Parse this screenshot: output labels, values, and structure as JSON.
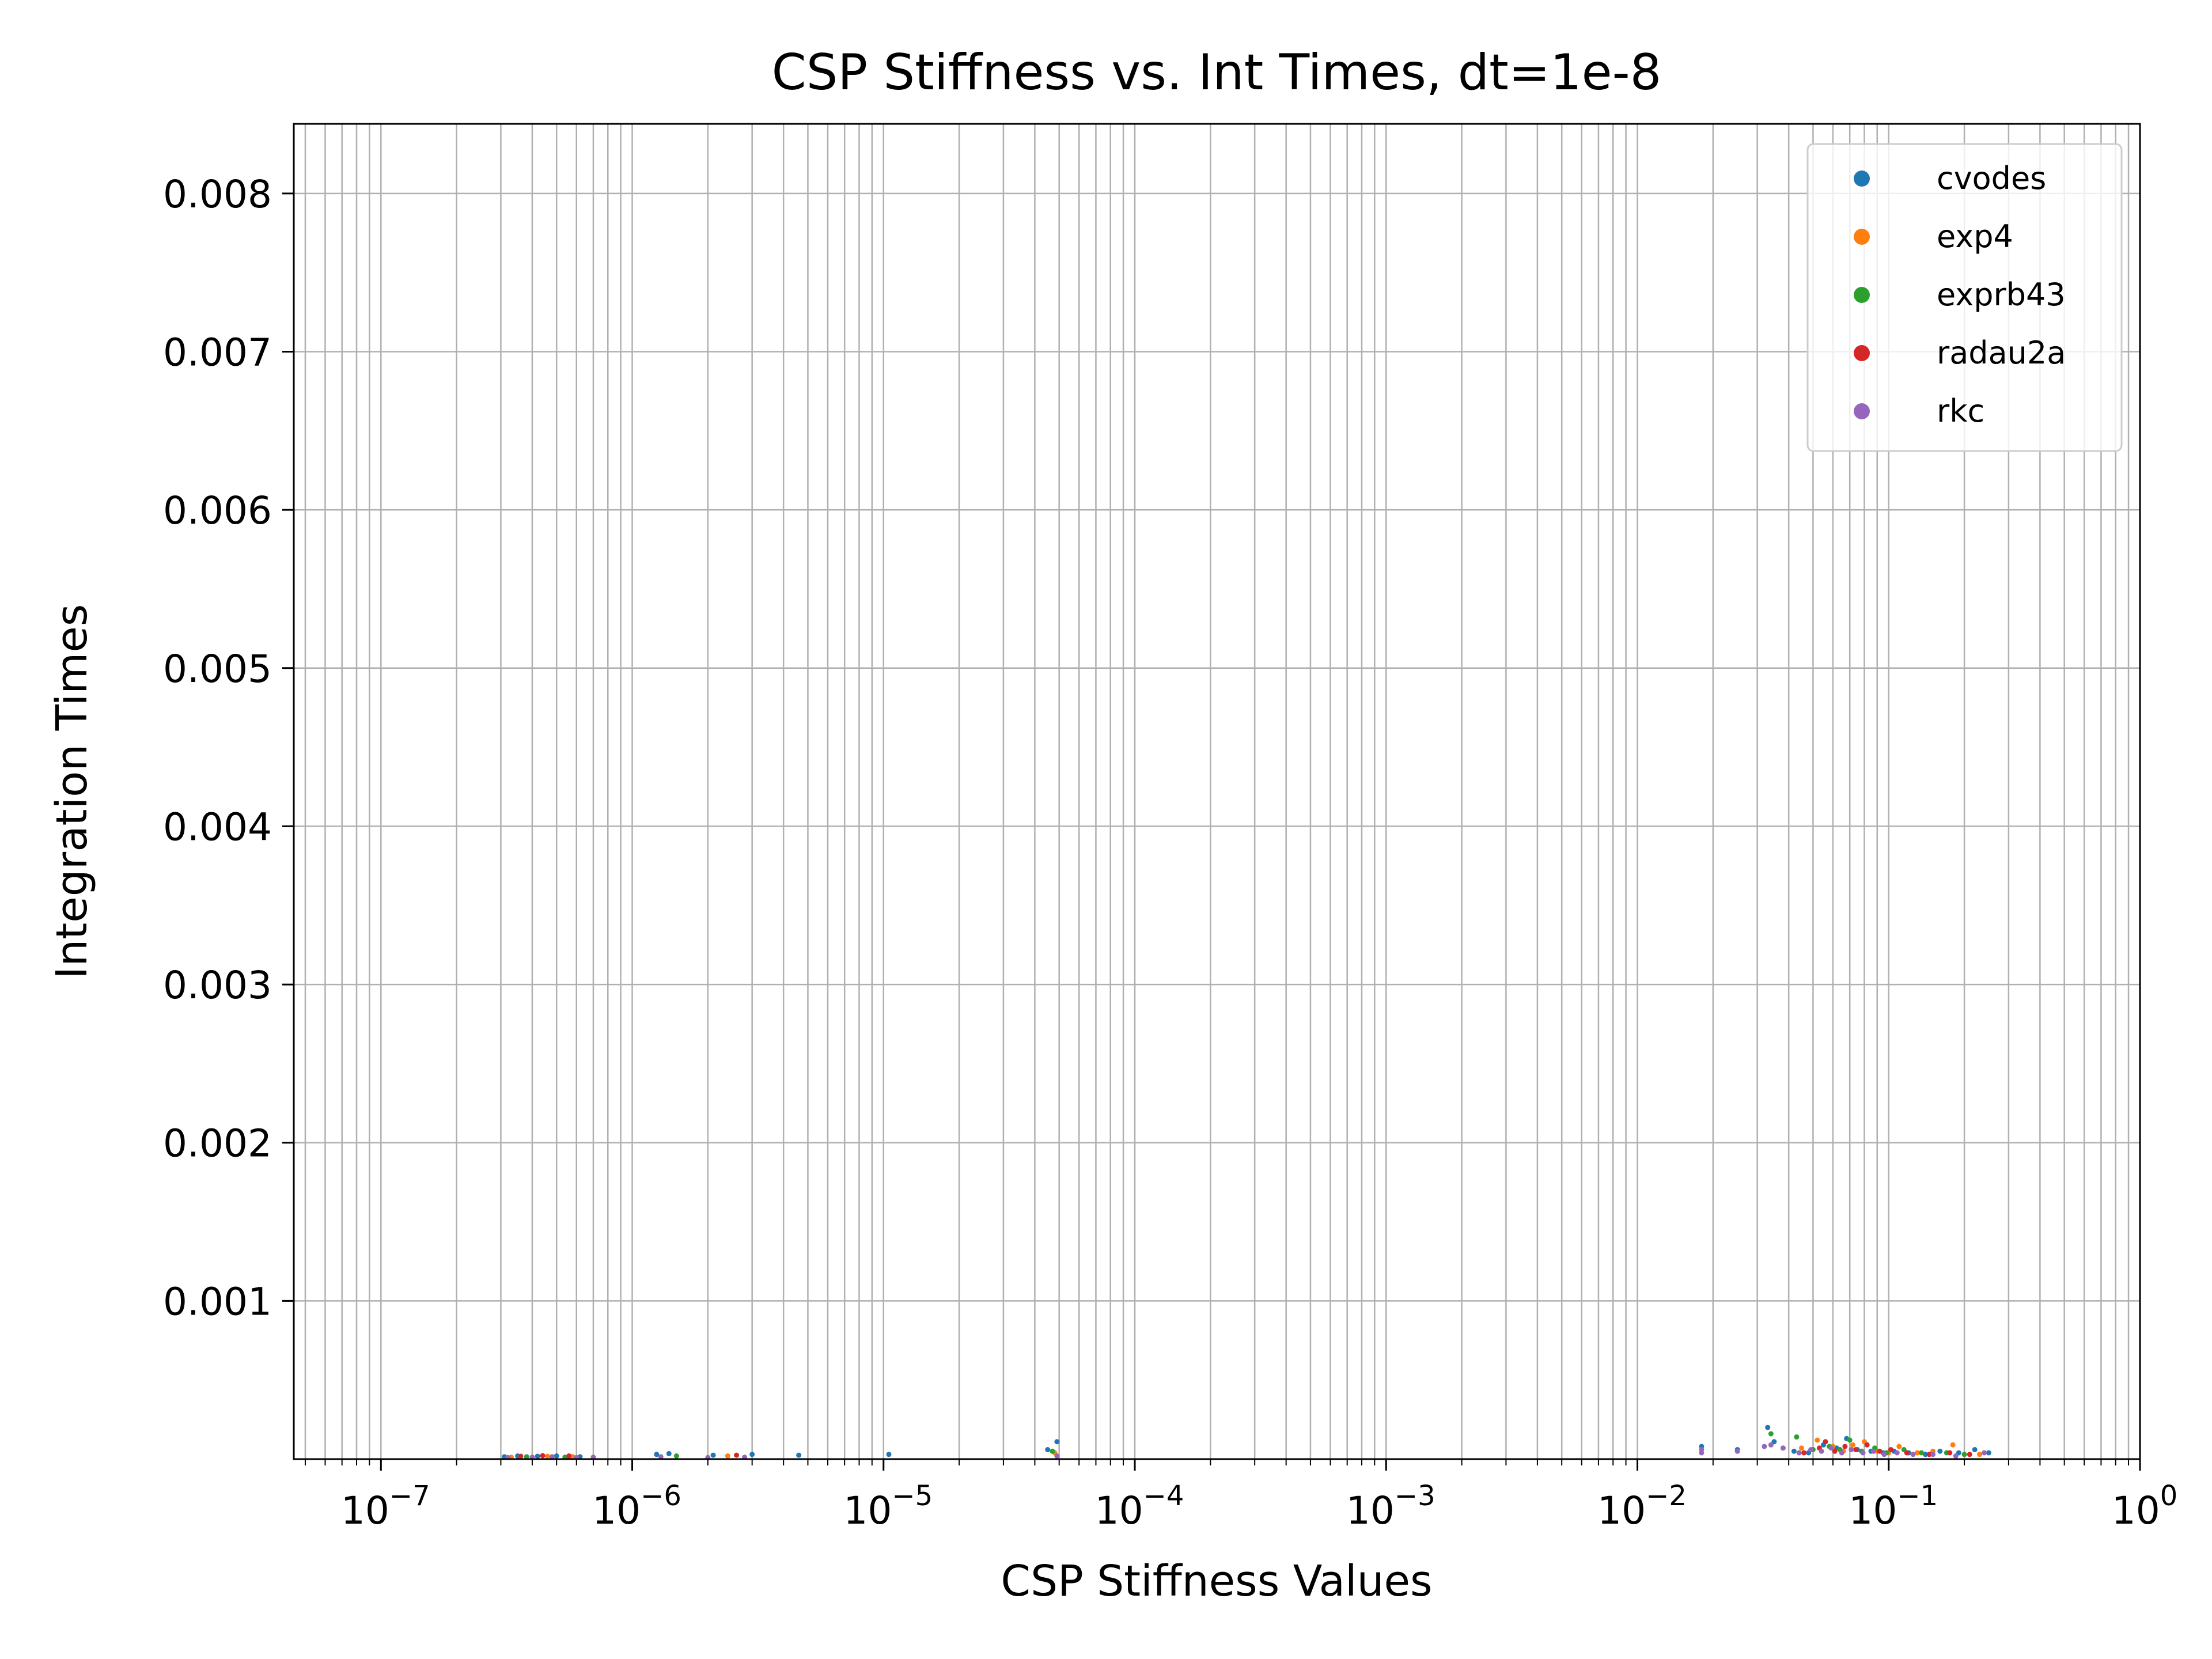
{
  "chart_data": {
    "type": "scatter",
    "title": "CSP Stiffness vs. Int Times, dt=1e-8",
    "xlabel": "CSP Stiffness Values",
    "ylabel": "Integration Times",
    "xscale": "log",
    "xlim": [
      4.5e-08,
      1.0
    ],
    "ylim": [
      0.0,
      0.00844
    ],
    "grid": "on (major and minor)",
    "legend_placement": "top-right",
    "x_ticks": [
      {
        "value": 1e-07,
        "mantissa": "10",
        "exp": "−7"
      },
      {
        "value": 1e-06,
        "mantissa": "10",
        "exp": "−6"
      },
      {
        "value": 1e-05,
        "mantissa": "10",
        "exp": "−5"
      },
      {
        "value": 0.0001,
        "mantissa": "10",
        "exp": "−4"
      },
      {
        "value": 0.001,
        "mantissa": "10",
        "exp": "−3"
      },
      {
        "value": 0.01,
        "mantissa": "10",
        "exp": "−2"
      },
      {
        "value": 0.1,
        "mantissa": "10",
        "exp": "−1"
      },
      {
        "value": 1.0,
        "mantissa": "10",
        "exp": "0"
      }
    ],
    "y_ticks": [
      {
        "value": 0.001,
        "label": "0.001"
      },
      {
        "value": 0.002,
        "label": "0.002"
      },
      {
        "value": 0.003,
        "label": "0.003"
      },
      {
        "value": 0.004,
        "label": "0.004"
      },
      {
        "value": 0.005,
        "label": "0.005"
      },
      {
        "value": 0.006,
        "label": "0.006"
      },
      {
        "value": 0.007,
        "label": "0.007"
      },
      {
        "value": 0.008,
        "label": "0.008"
      }
    ],
    "series": [
      {
        "name": "cvodes",
        "color": "#1f77b4",
        "points": [
          [
            3.1e-07,
            1.5e-05
          ],
          [
            3.5e-07,
            2e-05
          ],
          [
            4.2e-07,
            1.8e-05
          ],
          [
            5e-07,
            2e-05
          ],
          [
            6.2e-07,
            1.5e-05
          ],
          [
            1.25e-06,
            3e-05
          ],
          [
            1.4e-06,
            3.5e-05
          ],
          [
            2.1e-06,
            2.5e-05
          ],
          [
            3e-06,
            3e-05
          ],
          [
            4.6e-06,
            2.5e-05
          ],
          [
            1.05e-05,
            3e-05
          ],
          [
            4.5e-05,
            6e-05
          ],
          [
            4.9e-05,
            0.00011
          ],
          [
            0.018,
            8e-05
          ],
          [
            0.025,
            6e-05
          ],
          [
            0.033,
            0.0002
          ],
          [
            0.035,
            0.00011
          ],
          [
            0.042,
            5e-05
          ],
          [
            0.048,
            4e-05
          ],
          [
            0.055,
            9e-05
          ],
          [
            0.062,
            7e-05
          ],
          [
            0.068,
            0.00013
          ],
          [
            0.075,
            6e-05
          ],
          [
            0.085,
            5e-05
          ],
          [
            0.095,
            4e-05
          ],
          [
            0.105,
            5e-05
          ],
          [
            0.12,
            4e-05
          ],
          [
            0.14,
            3e-05
          ],
          [
            0.16,
            5e-05
          ],
          [
            0.19,
            4e-05
          ],
          [
            0.22,
            6e-05
          ],
          [
            0.25,
            4e-05
          ]
        ]
      },
      {
        "name": "exp4",
        "color": "#ff7f0e",
        "points": [
          [
            3.3e-07,
            1.2e-05
          ],
          [
            4.6e-07,
            1.8e-05
          ],
          [
            5.8e-07,
            1.5e-05
          ],
          [
            2.4e-06,
            2e-05
          ],
          [
            4.8e-05,
            4e-05
          ],
          [
            0.045,
            7e-05
          ],
          [
            0.052,
            0.00012
          ],
          [
            0.06,
            8e-05
          ],
          [
            0.066,
            5e-05
          ],
          [
            0.072,
            9e-05
          ],
          [
            0.08,
            0.00011
          ],
          [
            0.09,
            5e-05
          ],
          [
            0.1,
            4e-05
          ],
          [
            0.11,
            8e-05
          ],
          [
            0.13,
            4e-05
          ],
          [
            0.15,
            5e-05
          ],
          [
            0.18,
            9e-05
          ],
          [
            0.23,
            3e-05
          ]
        ]
      },
      {
        "name": "exprb43",
        "color": "#2ca02c",
        "points": [
          [
            3.8e-07,
            1.5e-05
          ],
          [
            5.4e-07,
            1.2e-05
          ],
          [
            1.5e-06,
            2e-05
          ],
          [
            4.7e-05,
            5e-05
          ],
          [
            0.034,
            0.00016
          ],
          [
            0.043,
            0.00014
          ],
          [
            0.05,
            6e-05
          ],
          [
            0.058,
            8e-05
          ],
          [
            0.064,
            6e-05
          ],
          [
            0.07,
            0.00012
          ],
          [
            0.078,
            5e-05
          ],
          [
            0.088,
            7e-05
          ],
          [
            0.098,
            4e-05
          ],
          [
            0.115,
            6e-05
          ],
          [
            0.135,
            4e-05
          ],
          [
            0.17,
            4e-05
          ],
          [
            0.2,
            3e-05
          ]
        ]
      },
      {
        "name": "radau2a",
        "color": "#d62728",
        "points": [
          [
            3.6e-07,
            1.8e-05
          ],
          [
            4.4e-07,
            2.2e-05
          ],
          [
            5.6e-07,
            2e-05
          ],
          [
            2.6e-06,
            2.5e-05
          ],
          [
            0.046,
            4e-05
          ],
          [
            0.053,
            7e-05
          ],
          [
            0.056,
            0.00011
          ],
          [
            0.061,
            5e-05
          ],
          [
            0.067,
            8e-05
          ],
          [
            0.074,
            6e-05
          ],
          [
            0.082,
            9e-05
          ],
          [
            0.092,
            5e-05
          ],
          [
            0.102,
            6e-05
          ],
          [
            0.118,
            4e-05
          ],
          [
            0.145,
            3e-05
          ],
          [
            0.175,
            4e-05
          ],
          [
            0.21,
            3e-05
          ]
        ]
      },
      {
        "name": "rkc",
        "color": "#9467bd",
        "points": [
          [
            3.2e-07,
            1e-05
          ],
          [
            4e-07,
            1.2e-05
          ],
          [
            4.8e-07,
            1.5e-05
          ],
          [
            6e-07,
            1e-05
          ],
          [
            7e-07,
            1.2e-05
          ],
          [
            1.3e-06,
            1.5e-05
          ],
          [
            2e-06,
            1e-05
          ],
          [
            2.8e-06,
            1.2e-05
          ],
          [
            4.9e-05,
            2e-05
          ],
          [
            0.018,
            6e-05
          ],
          [
            0.018,
            4e-05
          ],
          [
            0.025,
            5e-05
          ],
          [
            0.032,
            8e-05
          ],
          [
            0.034,
            9e-05
          ],
          [
            0.038,
            7e-05
          ],
          [
            0.044,
            4e-05
          ],
          [
            0.049,
            6e-05
          ],
          [
            0.054,
            5e-05
          ],
          [
            0.059,
            7e-05
          ],
          [
            0.065,
            4e-05
          ],
          [
            0.071,
            6e-05
          ],
          [
            0.079,
            4e-05
          ],
          [
            0.087,
            5e-05
          ],
          [
            0.096,
            3e-05
          ],
          [
            0.108,
            4e-05
          ],
          [
            0.125,
            3e-05
          ],
          [
            0.15,
            3e-05
          ],
          [
            0.185,
            2e-05
          ],
          [
            0.24,
            4e-05
          ]
        ]
      }
    ]
  }
}
